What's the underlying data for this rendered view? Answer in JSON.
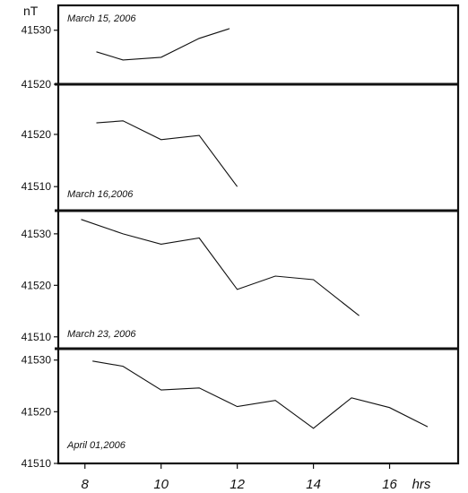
{
  "chart_data": {
    "type": "line",
    "y_unit": "nT",
    "x_unit": "hrs",
    "xlim": [
      7.3,
      17.8
    ],
    "x_ticks": [
      8,
      10,
      12,
      14,
      16
    ],
    "panels": [
      {
        "label": "March 15, 2006",
        "ylim": [
          41520,
          41534.6
        ],
        "y_ticks": [
          41520,
          41530
        ],
        "series": [
          {
            "x": [
              8.3,
              9,
              10,
              11,
              11.8
            ],
            "values": [
              41526,
              41524.5,
              41525,
              41528.5,
              41530.3
            ]
          }
        ]
      },
      {
        "label": "March 16,2006",
        "ylim": [
          41505.4,
          41529.6
        ],
        "y_ticks": [
          41510,
          41520
        ],
        "series": [
          {
            "x": [
              8.3,
              9,
              10,
              11,
              12
            ],
            "values": [
              41522.2,
              41522.6,
              41519,
              41519.8,
              41510
            ]
          }
        ]
      },
      {
        "label": "March 23, 2006",
        "ylim": [
          41507.7,
          41534.5
        ],
        "y_ticks": [
          41510,
          41520,
          41530
        ],
        "series": [
          {
            "x": [
              7.9,
              9,
              10,
              11,
              12,
              13,
              14,
              15.2
            ],
            "values": [
              41532.8,
              41530,
              41528,
              41529.2,
              41519.2,
              41521.8,
              41521.1,
              41514.1
            ]
          }
        ]
      },
      {
        "label": "April 01,2006",
        "ylim": [
          41510,
          41532.2
        ],
        "y_ticks": [
          41510,
          41520,
          41530
        ],
        "series": [
          {
            "x": [
              8.2,
              9,
              10,
              11,
              12,
              13,
              14,
              15,
              16,
              17
            ],
            "values": [
              41529.8,
              41528.8,
              41524.2,
              41524.6,
              41521,
              41522.2,
              41516.8,
              41522.7,
              41520.8,
              41517.1
            ]
          }
        ]
      }
    ]
  }
}
